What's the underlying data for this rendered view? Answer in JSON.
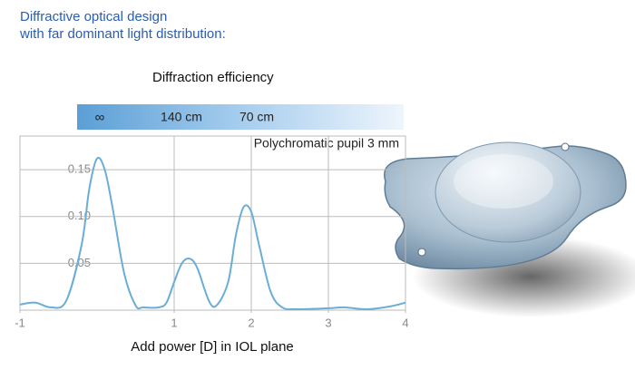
{
  "chart_data": {
    "type": "line",
    "heading": [
      "Diffractive optical design",
      "with far dominant light distribution:"
    ],
    "bar_title": "Diffraction efficiency",
    "bar_labels": [
      "∞",
      "140 cm",
      "70 cm"
    ],
    "annotation": "Polychromatic pupil 3 mm",
    "xlabel": "Add power [D] in IOL plane",
    "x": [
      -1,
      -0.8,
      -0.6,
      -0.4,
      -0.2,
      -0.1,
      0,
      0.1,
      0.2,
      0.35,
      0.5,
      0.6,
      0.8,
      0.9,
      1.0,
      1.1,
      1.2,
      1.3,
      1.45,
      1.55,
      1.7,
      1.8,
      1.9,
      2.0,
      2.1,
      2.25,
      2.4,
      2.6,
      3.0,
      3.2,
      3.5,
      3.8,
      4.0
    ],
    "series": [
      {
        "color": "#6aaed6",
        "values": [
          0.006,
          0.008,
          0.003,
          0.01,
          0.07,
          0.13,
          0.162,
          0.15,
          0.11,
          0.04,
          0.005,
          0.003,
          0.003,
          0.008,
          0.03,
          0.05,
          0.055,
          0.045,
          0.01,
          0.005,
          0.03,
          0.08,
          0.11,
          0.105,
          0.07,
          0.02,
          0.003,
          0.001,
          0.002,
          0.003,
          0.001,
          0.004,
          0.008
        ]
      }
    ],
    "xlim": [
      -1,
      4
    ],
    "xticks": [
      -1,
      1,
      2,
      3,
      4
    ],
    "ylim": [
      0,
      0.186
    ],
    "yticks": [
      0.05,
      {
        "value": 0.1,
        "label": "0.10"
      },
      0.15
    ],
    "grid": true
  }
}
